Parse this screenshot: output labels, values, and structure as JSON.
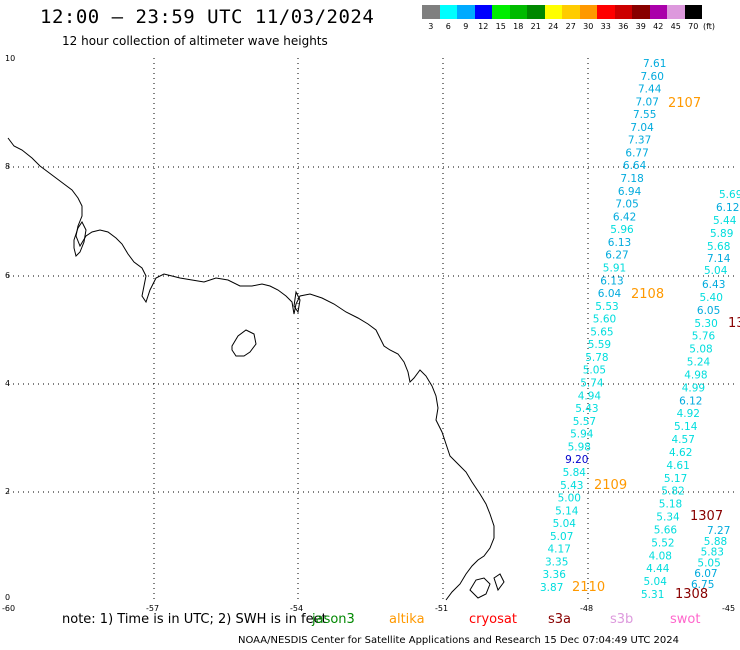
{
  "header": {
    "title": "12:00 – 23:59 UTC 11/03/2024",
    "subtitle": "12 hour collection of altimeter wave heights"
  },
  "colorbar": {
    "unit": "(ft)",
    "steps": [
      {
        "label": "3",
        "color": "#7f7f7f"
      },
      {
        "label": "6",
        "color": "#00ffff"
      },
      {
        "label": "9",
        "color": "#00aaff"
      },
      {
        "label": "12",
        "color": "#0000ff"
      },
      {
        "label": "15",
        "color": "#00ee00"
      },
      {
        "label": "18",
        "color": "#00bb00"
      },
      {
        "label": "21",
        "color": "#008800"
      },
      {
        "label": "24",
        "color": "#ffff00"
      },
      {
        "label": "27",
        "color": "#ffcc00"
      },
      {
        "label": "30",
        "color": "#ff9900"
      },
      {
        "label": "33",
        "color": "#ff0000"
      },
      {
        "label": "36",
        "color": "#cc0000"
      },
      {
        "label": "39",
        "color": "#880000"
      },
      {
        "label": "42",
        "color": "#aa00aa"
      },
      {
        "label": "45",
        "color": "#dd99dd"
      },
      {
        "label": "70",
        "color": "#000000"
      }
    ]
  },
  "axes": {
    "x_ticks": [
      "-60",
      "-57",
      "-54",
      "-51",
      "-48",
      "-45"
    ],
    "y_ticks": [
      "0",
      "2",
      "4",
      "6",
      "8",
      "10"
    ]
  },
  "tracks": {
    "track1": [
      "7.61",
      "7.60",
      "7.44",
      "7.07",
      "7.55",
      "7.04",
      "7.37",
      "6.77",
      "6.64",
      "7.18",
      "6.94",
      "7.05",
      "6.42",
      "5.96",
      "6.13",
      "6.27",
      "5.91",
      "6.13",
      "6.04",
      "5.53",
      "5.60",
      "5.65",
      "5.59",
      "5.78",
      "5.05",
      "5.74",
      "4.94",
      "5.43",
      "5.57",
      "5.94",
      "5.98",
      "9.20",
      "5.84",
      "5.43",
      "5.00",
      "5.14",
      "5.04",
      "5.07",
      "4.17",
      "3.35",
      "3.36",
      "3.87"
    ],
    "track2": [
      "6.43",
      "5.40",
      "6.05",
      "5.30",
      "5.76",
      "5.08",
      "5.24",
      "4.98",
      "4.99",
      "6.12",
      "4.92",
      "5.14",
      "4.57",
      "4.62",
      "4.61",
      "5.17",
      "5.82",
      "5.18",
      "5.34",
      "5.66",
      "5.52",
      "4.08",
      "4.44",
      "5.04",
      "5.31"
    ],
    "track3": [
      "7.14",
      "5.04"
    ],
    "track3_low": [
      "7.27",
      "5.88",
      "5.83",
      "5.05",
      "6.07",
      "6.75"
    ],
    "track4": [
      "5.69",
      "6.12",
      "5.44",
      "5.89",
      "5.68"
    ]
  },
  "pass_ids": [
    "2107",
    "2108",
    "2109",
    "2110",
    "1307",
    "1308",
    "13"
  ],
  "footer": {
    "note": "note:  1) Time is in UTC;  2) SWH is in feet",
    "legend": [
      {
        "name": "jason3",
        "color": "#008800"
      },
      {
        "name": "altika",
        "color": "#ff9900"
      },
      {
        "name": "cryosat",
        "color": "#ff0000"
      },
      {
        "name": "s3a",
        "color": "#880000"
      },
      {
        "name": "s3b",
        "color": "#dd99dd"
      },
      {
        "name": "swot",
        "color": "#ff66cc"
      }
    ],
    "credit": "NOAA/NESDIS Center for Satellite Applications and Research    15 Dec 07:04:49 UTC 2024"
  }
}
